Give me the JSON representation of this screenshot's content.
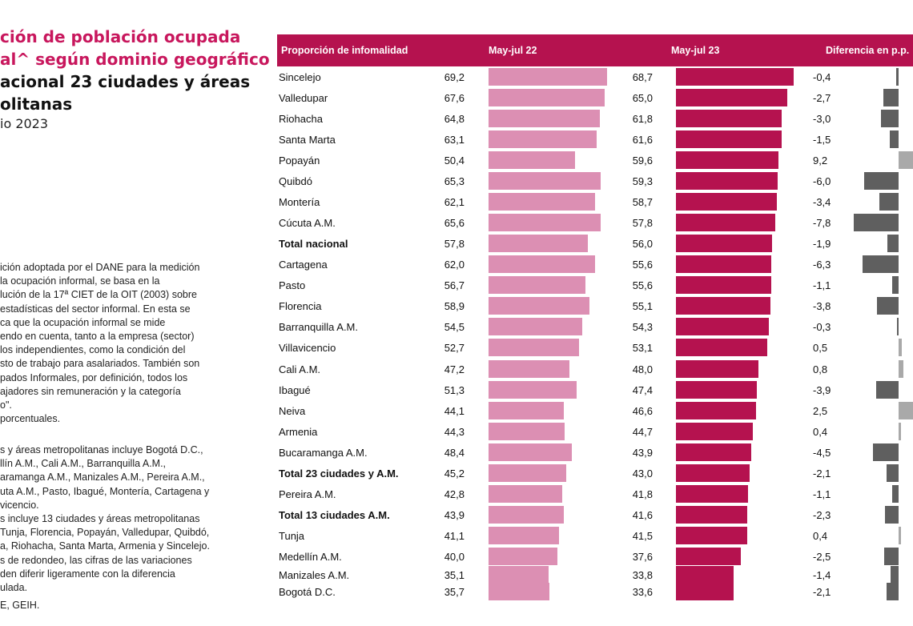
{
  "title": {
    "line1": "ción de población ocupada",
    "line2": "al^ según dominio geográfico",
    "line3": "acional 23 ciudades y áreas",
    "line4": "olitanas",
    "period": "io 2023"
  },
  "notes": {
    "p1": [
      "ición adoptada por el DANE para la medición",
      "la ocupación informal, se basa en la",
      "lución de la 17ª CIET de la OIT (2003) sobre",
      "estadísticas del sector informal. En esta se",
      "ca que la ocupación informal se mide",
      "endo en cuenta, tanto a la empresa (sector)",
      "los independientes, como la condición del",
      "sto de trabajo para asalariados. También son",
      "pados Informales, por definición,  todos los",
      "ajadores sin remuneración y la categoría",
      "o\".",
      "porcentuales."
    ],
    "p2": [
      "s y áreas metropolitanas incluye Bogotá D.C.,",
      "llín A.M., Cali A.M., Barranquilla A.M.,",
      "aramanga A.M., Manizales A.M., Pereira A.M.,",
      "uta A.M., Pasto, Ibagué, Montería, Cartagena y",
      "vicencio."
    ],
    "p3": [
      "s incluye 13 ciudades y áreas metropolitanas",
      "Tunja, Florencia, Popayán, Valledupar, Quibdó,",
      "a, Riohacha, Santa Marta, Armenia y Sincelejo."
    ],
    "p4": [
      "s de redondeo, las cifras de las variaciones",
      "den diferir ligeramente con la diferencia",
      "ulada."
    ],
    "p5": [
      "E, GEIH."
    ]
  },
  "header": {
    "col1": "Proporción de infomalidad",
    "col2": "May-jul 22",
    "col3": "May-jul 23",
    "col4": "Diferencia en p.p."
  },
  "colors": {
    "header_bg": "#b5124f",
    "bar_2022": "#dc8fb3",
    "bar_2023": "#b5124f",
    "diff_negative": "#5f5f5f",
    "diff_positive": "#a9a9a9",
    "title_accent": "#c8175d"
  },
  "chart_data": {
    "type": "bar",
    "categories": [
      "Sincelejo",
      "Valledupar",
      "Riohacha",
      "Santa Marta",
      "Popayán",
      "Quibdó",
      "Montería",
      "Cúcuta A.M.",
      "Total nacional",
      "Cartagena",
      "Pasto",
      "Florencia",
      "Barranquilla A.M.",
      "Villavicencio",
      "Cali A.M.",
      "Ibagué",
      "Neiva",
      "Armenia",
      "Bucaramanga A.M.",
      "Total 23 ciudades y A.M.",
      "Pereira A.M.",
      "Total 13 ciudades A.M.",
      "Tunja",
      "Medellín A.M.",
      "Manizales A.M.",
      "Bogotá D.C."
    ],
    "bold_categories": [
      "Total nacional",
      "Total 23 ciudades y A.M.",
      "Total 13 ciudades A.M."
    ],
    "series": [
      {
        "name": "May-jul 22",
        "values": [
          "69,2",
          "67,6",
          "64,8",
          "63,1",
          "50,4",
          "65,3",
          "62,1",
          "65,6",
          "57,8",
          "62,0",
          "56,7",
          "58,9",
          "54,5",
          "52,7",
          "47,2",
          "51,3",
          "44,1",
          "44,3",
          "48,4",
          "45,2",
          "42,8",
          "43,9",
          "41,1",
          "40,0",
          "35,1",
          "35,7"
        ]
      },
      {
        "name": "May-jul 23",
        "values": [
          "68,7",
          "65,0",
          "61,8",
          "61,6",
          "59,6",
          "59,3",
          "58,7",
          "57,8",
          "56,0",
          "55,6",
          "55,6",
          "55,1",
          "54,3",
          "53,1",
          "48,0",
          "47,4",
          "46,6",
          "44,7",
          "43,9",
          "43,0",
          "41,8",
          "41,6",
          "41,5",
          "37,6",
          "33,8",
          "33,6"
        ]
      },
      {
        "name": "Diferencia en p.p.",
        "values": [
          "-0,4",
          "-2,7",
          "-3,0",
          "-1,5",
          "9,2",
          "-6,0",
          "-3,4",
          "-7,8",
          "-1,9",
          "-6,3",
          "-1,1",
          "-3,8",
          "-0,3",
          "0,5",
          "0,8",
          "-3,9",
          "2,5",
          "0,4",
          "-4,5",
          "-2,1",
          "-1,1",
          "-2,3",
          "0,4",
          "-2,5",
          "-1,4",
          "-2,1"
        ]
      }
    ]
  }
}
